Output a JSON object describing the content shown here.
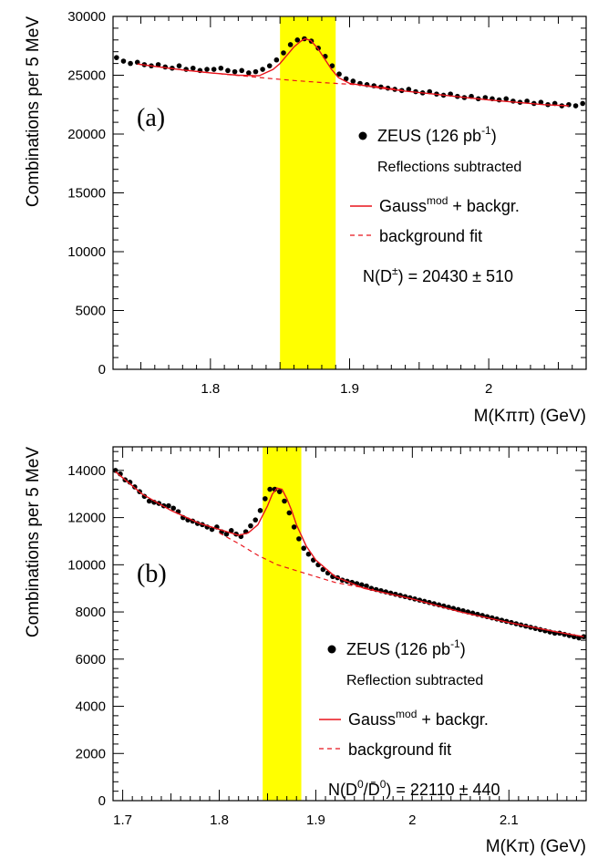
{
  "chart_data": [
    {
      "type": "scatter",
      "panel_label": "(a)",
      "xlabel": "M(Kππ)  (GeV)",
      "ylabel": "Combinations per 5 MeV",
      "xlim": [
        1.73,
        2.07
      ],
      "ylim": [
        0,
        30000
      ],
      "x_ticks": [
        1.8,
        1.9,
        2.0
      ],
      "x_tick_labels": [
        "1.8",
        "1.9",
        "2"
      ],
      "y_ticks": [
        0,
        5000,
        10000,
        15000,
        20000,
        25000,
        30000
      ],
      "y_tick_labels": [
        "0",
        "5000",
        "10000",
        "15000",
        "20000",
        "25000",
        "30000"
      ],
      "signal_band": [
        1.85,
        1.89
      ],
      "series": [
        {
          "name": "ZEUS (126 pb⁻¹)",
          "kind": "points",
          "x": [
            1.7325,
            1.7375,
            1.7425,
            1.7475,
            1.7525,
            1.7575,
            1.7625,
            1.7675,
            1.7725,
            1.7775,
            1.7825,
            1.7875,
            1.7925,
            1.7975,
            1.8025,
            1.8075,
            1.8125,
            1.8175,
            1.8225,
            1.8275,
            1.8325,
            1.8375,
            1.8425,
            1.8475,
            1.8525,
            1.8575,
            1.8625,
            1.8675,
            1.8725,
            1.8775,
            1.8825,
            1.8875,
            1.8925,
            1.8975,
            1.9025,
            1.9075,
            1.9125,
            1.9175,
            1.9225,
            1.9275,
            1.9325,
            1.9375,
            1.9425,
            1.9475,
            1.9525,
            1.9575,
            1.9625,
            1.9675,
            1.9725,
            1.9775,
            1.9825,
            1.9875,
            1.9925,
            1.9975,
            2.0025,
            2.0075,
            2.0125,
            2.0175,
            2.0225,
            2.0275,
            2.0325,
            2.0375,
            2.0425,
            2.0475,
            2.0525,
            2.0575,
            2.0625,
            2.0675
          ],
          "y": [
            26500,
            26200,
            26000,
            26100,
            25900,
            25800,
            25900,
            25700,
            25600,
            25800,
            25500,
            25600,
            25400,
            25500,
            25500,
            25600,
            25400,
            25300,
            25400,
            25200,
            25300,
            25500,
            25800,
            26300,
            26900,
            27600,
            28000,
            28100,
            27900,
            27300,
            26600,
            25800,
            25100,
            24700,
            24500,
            24300,
            24200,
            24100,
            24000,
            23900,
            23800,
            23700,
            23800,
            23600,
            23500,
            23600,
            23400,
            23300,
            23400,
            23200,
            23100,
            23200,
            23000,
            23100,
            23000,
            22900,
            23000,
            22800,
            22700,
            22800,
            22600,
            22700,
            22500,
            22600,
            22400,
            22500,
            22400,
            22600
          ]
        },
        {
          "name": "Gaussᵐᵒᵈ + backgr.",
          "kind": "line",
          "style": "solid",
          "color": "#e8141c",
          "x": [
            1.7475,
            1.76,
            1.78,
            1.8,
            1.82,
            1.835,
            1.845,
            1.85,
            1.855,
            1.86,
            1.865,
            1.868,
            1.872,
            1.877,
            1.882,
            1.887,
            1.892,
            1.9,
            1.92,
            1.94,
            1.96,
            1.98,
            2.0,
            2.02,
            2.04,
            2.0575
          ],
          "y": [
            25950,
            25750,
            25450,
            25200,
            25000,
            24950,
            25500,
            26000,
            26700,
            27400,
            27900,
            28100,
            27950,
            27300,
            26400,
            25500,
            24800,
            24300,
            23950,
            23650,
            23400,
            23150,
            22900,
            22700,
            22500,
            22400
          ]
        },
        {
          "name": "background fit",
          "kind": "line",
          "style": "dashed",
          "color": "#e8141c",
          "x": [
            1.7475,
            1.78,
            1.8,
            1.82,
            1.84,
            1.86,
            1.88,
            1.9,
            1.92,
            1.94
          ],
          "y": [
            25950,
            25450,
            25200,
            24980,
            24750,
            24550,
            24380,
            24230,
            24050,
            23700
          ]
        }
      ],
      "legend": {
        "points_label_main": "ZEUS (126 pb",
        "points_label_sup": "-1",
        "points_label_end": ")",
        "subtitle": "Reflections subtracted",
        "line_label_main": "Gauss",
        "line_label_sup": "mod",
        "line_label_end": " + backgr.",
        "dashed_label": "background fit",
        "count_prefix": "N(D",
        "count_sup": "±",
        "count_suffix": ") = 20430 ± 510"
      }
    },
    {
      "type": "scatter",
      "panel_label": "(b)",
      "xlabel": "M(Kπ)  (GeV)",
      "ylabel": "Combinations per 5 MeV",
      "xlim": [
        1.69,
        2.18
      ],
      "ylim": [
        0,
        15000
      ],
      "x_ticks": [
        1.7,
        1.8,
        1.9,
        2.0,
        2.1
      ],
      "x_tick_labels": [
        "1.7",
        "1.8",
        "1.9",
        "2",
        "2.1"
      ],
      "y_ticks": [
        0,
        2000,
        4000,
        6000,
        8000,
        10000,
        12000,
        14000
      ],
      "y_tick_labels": [
        "0",
        "2000",
        "4000",
        "6000",
        "8000",
        "10000",
        "12000",
        "14000"
      ],
      "signal_band": [
        1.845,
        1.885
      ],
      "series": [
        {
          "name": "ZEUS (126 pb⁻¹)",
          "kind": "points",
          "x": [
            1.6925,
            1.6975,
            1.7025,
            1.7075,
            1.7125,
            1.7175,
            1.7225,
            1.7275,
            1.7325,
            1.7375,
            1.7425,
            1.7475,
            1.7525,
            1.7575,
            1.7625,
            1.7675,
            1.7725,
            1.7775,
            1.7825,
            1.7875,
            1.7925,
            1.7975,
            1.8025,
            1.8075,
            1.8125,
            1.8175,
            1.8225,
            1.8275,
            1.8325,
            1.8375,
            1.8425,
            1.8475,
            1.8525,
            1.8575,
            1.8625,
            1.8675,
            1.8725,
            1.8775,
            1.8825,
            1.8875,
            1.8925,
            1.8975,
            1.9025,
            1.9075,
            1.9125,
            1.9175,
            1.9225,
            1.9275,
            1.9325,
            1.9375,
            1.9425,
            1.9475,
            1.9525,
            1.9575,
            1.9625,
            1.9675,
            1.9725,
            1.9775,
            1.9825,
            1.9875,
            1.9925,
            1.9975,
            2.0025,
            2.0075,
            2.0125,
            2.0175,
            2.0225,
            2.0275,
            2.0325,
            2.0375,
            2.0425,
            2.0475,
            2.0525,
            2.0575,
            2.0625,
            2.0675,
            2.0725,
            2.0775,
            2.0825,
            2.0875,
            2.0925,
            2.0975,
            2.1025,
            2.1075,
            2.1125,
            2.1175,
            2.1225,
            2.1275,
            2.1325,
            2.1375,
            2.1425,
            2.1475,
            2.1525,
            2.1575,
            2.1625,
            2.1675,
            2.1725,
            2.1775
          ],
          "y": [
            14000,
            13850,
            13600,
            13500,
            13300,
            13100,
            12900,
            12700,
            12650,
            12600,
            12500,
            12500,
            12400,
            12250,
            12000,
            11900,
            11850,
            11750,
            11700,
            11600,
            11500,
            11600,
            11400,
            11300,
            11450,
            11300,
            11200,
            11400,
            11650,
            11900,
            12300,
            12800,
            13200,
            13200,
            13100,
            12700,
            12200,
            11600,
            11100,
            10700,
            10450,
            10200,
            10000,
            9800,
            9650,
            9500,
            9450,
            9350,
            9300,
            9250,
            9200,
            9150,
            9100,
            9000,
            8950,
            8900,
            8850,
            8800,
            8750,
            8700,
            8650,
            8600,
            8550,
            8500,
            8450,
            8400,
            8350,
            8300,
            8250,
            8200,
            8150,
            8100,
            8050,
            8000,
            7950,
            7900,
            7850,
            7800,
            7750,
            7700,
            7650,
            7600,
            7550,
            7500,
            7450,
            7400,
            7350,
            7300,
            7250,
            7200,
            7150,
            7100,
            7100,
            7050,
            7000,
            6950,
            6900,
            6950
          ]
        },
        {
          "name": "Gaussᵐᵒᵈ + backgr.",
          "kind": "line",
          "style": "solid",
          "color": "#e8141c",
          "x": [
            1.6925,
            1.72,
            1.75,
            1.78,
            1.8,
            1.82,
            1.83,
            1.84,
            1.85,
            1.855,
            1.86,
            1.865,
            1.87,
            1.875,
            1.88,
            1.89,
            1.9,
            1.92,
            1.95,
            2.0,
            2.05,
            2.1,
            2.15,
            2.1775
          ],
          "y": [
            13950,
            13000,
            12300,
            11750,
            11500,
            11250,
            11350,
            11700,
            12500,
            13000,
            13250,
            13200,
            12800,
            12300,
            11700,
            10800,
            10200,
            9500,
            9000,
            8550,
            8000,
            7550,
            7150,
            6950
          ]
        },
        {
          "name": "background fit",
          "kind": "line",
          "style": "dashed",
          "color": "#e8141c",
          "x": [
            1.8,
            1.82,
            1.84,
            1.86,
            1.88,
            1.9,
            1.92,
            1.94,
            1.96
          ],
          "y": [
            11350,
            10900,
            10400,
            10000,
            9750,
            9500,
            9250,
            9100,
            8950
          ]
        }
      ],
      "legend": {
        "points_label_main": "ZEUS (126 pb",
        "points_label_sup": "-1",
        "points_label_end": ")",
        "subtitle": "Reflection subtracted",
        "line_label_main": "Gauss",
        "line_label_sup": "mod",
        "line_label_end": " + backgr.",
        "dashed_label": "background fit",
        "count_prefix": "N(D",
        "count_sup": "0",
        "count_mid": "/D̄",
        "count_sup2": "0",
        "count_suffix": ") = 22110 ± 440"
      }
    }
  ],
  "colors": {
    "band": "#ffff00",
    "fit": "#e8141c",
    "points": "#000000"
  }
}
